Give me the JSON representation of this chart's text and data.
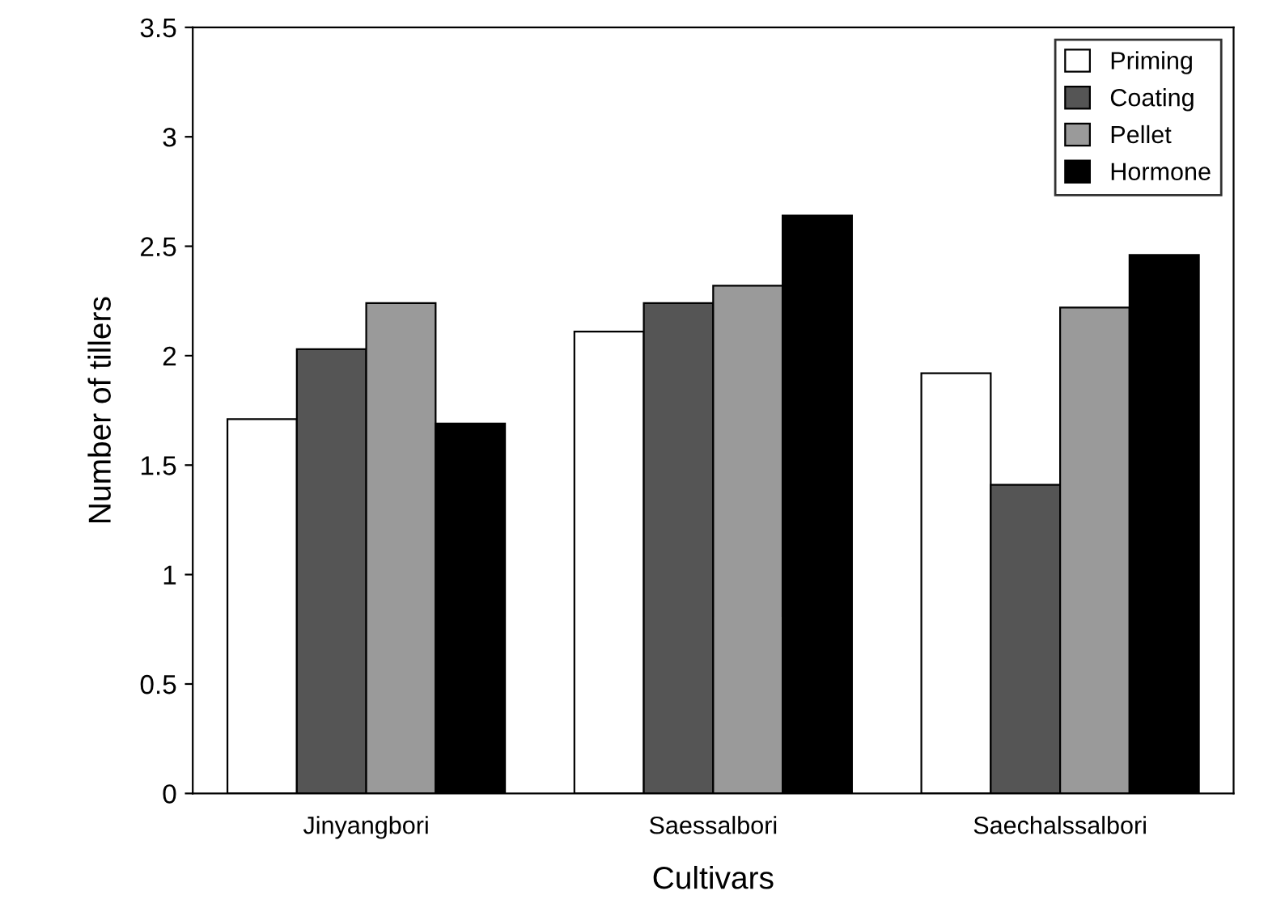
{
  "chart_data": {
    "type": "bar",
    "xlabel": "Cultivars",
    "ylabel": "Number of tillers",
    "categories": [
      "Jinyangbori",
      "Saessalbori",
      "Saechalssalbori"
    ],
    "series": [
      {
        "name": "Priming",
        "color": "#ffffff",
        "values": [
          1.71,
          2.11,
          1.92
        ]
      },
      {
        "name": "Coating",
        "color": "#555555",
        "values": [
          2.03,
          2.24,
          1.41
        ]
      },
      {
        "name": "Pellet",
        "color": "#9a9a9a",
        "values": [
          2.24,
          2.32,
          2.22
        ]
      },
      {
        "name": "Hormone",
        "color": "#000000",
        "values": [
          1.69,
          2.64,
          2.46
        ]
      }
    ],
    "ylim": [
      0,
      3.5
    ],
    "yticks": [
      0,
      0.5,
      1,
      1.5,
      2,
      2.5,
      3,
      3.5
    ],
    "legend": "top right",
    "grid": false
  }
}
